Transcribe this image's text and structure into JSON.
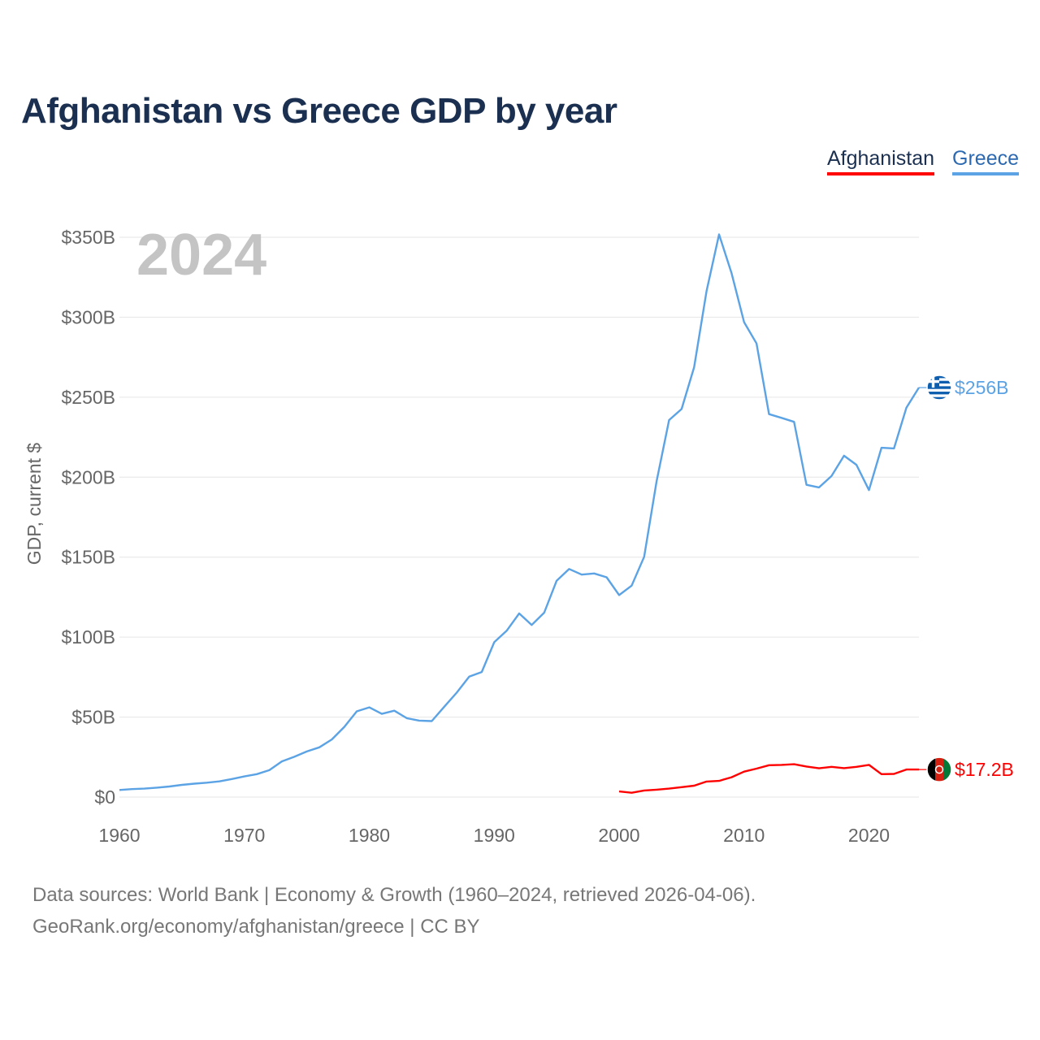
{
  "title": "Afghanistan vs Greece GDP by year",
  "legend": {
    "afghanistan": "Afghanistan",
    "greece": "Greece"
  },
  "footer": {
    "line1": "Data sources: World Bank | Economy & Growth (1960–2024, retrieved 2026-04-06).",
    "line2": "GeoRank.org/economy/afghanistan/greece | CC BY"
  },
  "colors": {
    "afghanistan": "#ff0000",
    "greece": "#5ba3e4",
    "title": "#1b3050"
  },
  "chart_data": {
    "type": "line",
    "title": "Afghanistan vs Greece GDP by year",
    "xlabel": "",
    "ylabel": "GDP, current $",
    "watermark_year": "2024",
    "xlim": [
      1960,
      2024
    ],
    "ylim": [
      0,
      350
    ],
    "y_unit": "billions USD",
    "x_ticks": [
      1960,
      1970,
      1980,
      1990,
      2000,
      2010,
      2020
    ],
    "x_tick_labels": [
      "1960",
      "1970",
      "1980",
      "1990",
      "2000",
      "2010",
      "2020"
    ],
    "y_ticks": [
      0,
      50,
      100,
      150,
      200,
      250,
      300,
      350
    ],
    "y_tick_labels": [
      "$0",
      "$50B",
      "$100B",
      "$150B",
      "$200B",
      "$250B",
      "$300B",
      "$350B"
    ],
    "grid": true,
    "legend_position": "top-right",
    "series": [
      {
        "name": "Greece",
        "color": "#5ba3e4",
        "end_label": "$256B",
        "points": [
          [
            1960,
            4.4
          ],
          [
            1961,
            5.0
          ],
          [
            1962,
            5.3
          ],
          [
            1963,
            5.9
          ],
          [
            1964,
            6.6
          ],
          [
            1965,
            7.6
          ],
          [
            1966,
            8.4
          ],
          [
            1967,
            9.0
          ],
          [
            1968,
            9.8
          ],
          [
            1969,
            11.3
          ],
          [
            1970,
            12.9
          ],
          [
            1971,
            14.3
          ],
          [
            1972,
            16.8
          ],
          [
            1973,
            22.3
          ],
          [
            1974,
            25.2
          ],
          [
            1975,
            28.5
          ],
          [
            1976,
            31.1
          ],
          [
            1977,
            36.0
          ],
          [
            1978,
            43.9
          ],
          [
            1979,
            53.6
          ],
          [
            1980,
            56.1
          ],
          [
            1981,
            52.0
          ],
          [
            1982,
            54.0
          ],
          [
            1983,
            49.3
          ],
          [
            1984,
            47.8
          ],
          [
            1985,
            47.5
          ],
          [
            1986,
            56.5
          ],
          [
            1987,
            65.3
          ],
          [
            1988,
            75.3
          ],
          [
            1989,
            78.2
          ],
          [
            1990,
            96.8
          ],
          [
            1991,
            104.0
          ],
          [
            1992,
            114.8
          ],
          [
            1993,
            107.6
          ],
          [
            1994,
            115.3
          ],
          [
            1995,
            135.3
          ],
          [
            1996,
            142.6
          ],
          [
            1997,
            139.1
          ],
          [
            1998,
            139.8
          ],
          [
            1999,
            137.4
          ],
          [
            2000,
            126.3
          ],
          [
            2001,
            132.2
          ],
          [
            2002,
            150.2
          ],
          [
            2003,
            197.4
          ],
          [
            2004,
            235.7
          ],
          [
            2005,
            242.6
          ],
          [
            2006,
            268.7
          ],
          [
            2007,
            316.3
          ],
          [
            2008,
            351.8
          ],
          [
            2009,
            327.5
          ],
          [
            2010,
            296.9
          ],
          [
            2011,
            283.6
          ],
          [
            2012,
            239.4
          ],
          [
            2013,
            237.1
          ],
          [
            2014,
            234.6
          ],
          [
            2015,
            195.2
          ],
          [
            2016,
            193.6
          ],
          [
            2017,
            200.7
          ],
          [
            2018,
            213.4
          ],
          [
            2019,
            207.7
          ],
          [
            2020,
            191.9
          ],
          [
            2021,
            218.4
          ],
          [
            2022,
            218.0
          ],
          [
            2023,
            243.5
          ],
          [
            2024,
            256.0
          ]
        ]
      },
      {
        "name": "Afghanistan",
        "color": "#ff0000",
        "end_label": "$17.2B",
        "points": [
          [
            2000,
            3.5
          ],
          [
            2001,
            2.7
          ],
          [
            2002,
            4.1
          ],
          [
            2003,
            4.6
          ],
          [
            2004,
            5.3
          ],
          [
            2005,
            6.2
          ],
          [
            2006,
            7.1
          ],
          [
            2007,
            9.7
          ],
          [
            2008,
            10.1
          ],
          [
            2009,
            12.4
          ],
          [
            2010,
            15.9
          ],
          [
            2011,
            17.8
          ],
          [
            2012,
            19.9
          ],
          [
            2013,
            20.1
          ],
          [
            2014,
            20.5
          ],
          [
            2015,
            19.1
          ],
          [
            2016,
            18.0
          ],
          [
            2017,
            18.9
          ],
          [
            2018,
            18.1
          ],
          [
            2019,
            18.9
          ],
          [
            2020,
            20.1
          ],
          [
            2021,
            14.3
          ],
          [
            2022,
            14.5
          ],
          [
            2023,
            17.2
          ],
          [
            2024,
            17.2
          ]
        ]
      }
    ]
  }
}
